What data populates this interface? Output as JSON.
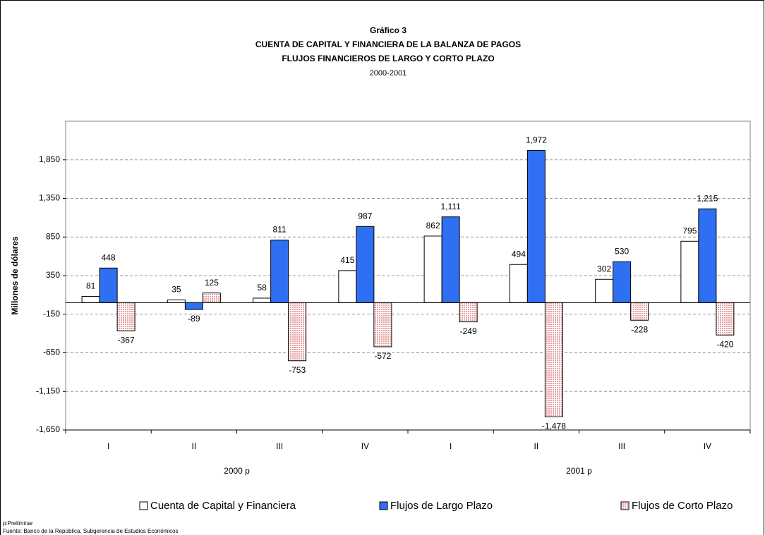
{
  "chart_data": {
    "type": "bar",
    "title": "Gráfico 3",
    "subtitle_lines": [
      "CUENTA DE CAPITAL Y FINANCIERA DE LA BALANZA DE PAGOS",
      "FLUJOS FINANCIEROS DE LARGO Y CORTO PLAZO"
    ],
    "period": "2000-2001",
    "y_label": "Millones de dólares",
    "categories": [
      "I",
      "II",
      "III",
      "IV",
      "I",
      "II",
      "III",
      "IV"
    ],
    "category_groups": [
      "2000 p",
      "2001 p"
    ],
    "series": [
      {
        "name": "Cuenta de Capital y Financiera",
        "color": "#ffffff",
        "values": [
          81,
          35,
          58,
          415,
          862,
          494,
          302,
          795
        ]
      },
      {
        "name": "Flujos de Largo Plazo",
        "color": "#2f6ff2",
        "values": [
          448,
          -89,
          811,
          987,
          1111,
          1972,
          530,
          1215
        ],
        "value_labels": [
          "448",
          "-89",
          "811",
          "987",
          "1,111",
          "1,972",
          "530",
          "1,215"
        ]
      },
      {
        "name": "Flujos de Corto Plazo",
        "color": "#f7c9c9",
        "values": [
          -367,
          125,
          -753,
          -572,
          -249,
          -1478,
          -228,
          -420
        ],
        "value_labels": [
          "-367",
          "125",
          "-753",
          "-572",
          "-249",
          "-1,478",
          "-228",
          "-420"
        ]
      }
    ],
    "ylim": [
      -1650,
      2350
    ],
    "yticks": [
      {
        "value": -1650,
        "label": "-1,650"
      },
      {
        "value": -1150,
        "label": "-1,150"
      },
      -650,
      -150,
      350,
      850,
      {
        "value": 1350,
        "label": "1,350"
      },
      {
        "value": 1850,
        "label": "1,850"
      }
    ],
    "grid": true,
    "notes": [
      "p:Preliminar",
      "Fuente: Banco de la República, Subgerencia de Estudios Económicos"
    ]
  }
}
